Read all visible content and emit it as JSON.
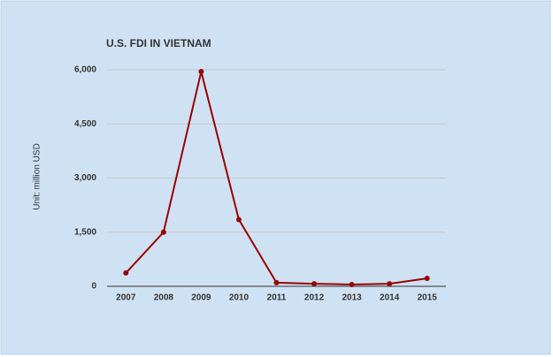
{
  "chart_data": {
    "type": "line",
    "title": "U.S. FDI IN VIETNAM",
    "y_label": "Unit: million USD",
    "categories": [
      "2007",
      "2008",
      "2009",
      "2010",
      "2011",
      "2012",
      "2013",
      "2014",
      "2015"
    ],
    "values": [
      370,
      1500,
      5950,
      1850,
      100,
      70,
      50,
      70,
      220
    ],
    "color": "#990000",
    "ylim": [
      0,
      6000
    ],
    "yticks": [
      0,
      {
        "value": 1500,
        "label": "1,500"
      },
      {
        "value": 3000,
        "label": "3,000"
      },
      {
        "value": 4500,
        "label": "4,500"
      },
      {
        "value": 6000,
        "label": "6,000"
      }
    ],
    "grid": true
  }
}
